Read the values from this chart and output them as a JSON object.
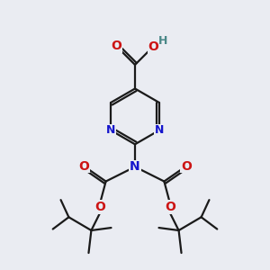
{
  "bg_color": "#eaecf2",
  "bond_color": "#1a1a1a",
  "N_color": "#1414cc",
  "O_color": "#cc1414",
  "H_color": "#4a8888",
  "lw": 1.6,
  "fig_w": 3.0,
  "fig_h": 3.0,
  "dpi": 100,
  "xlim": [
    0,
    10
  ],
  "ylim": [
    0,
    10
  ]
}
